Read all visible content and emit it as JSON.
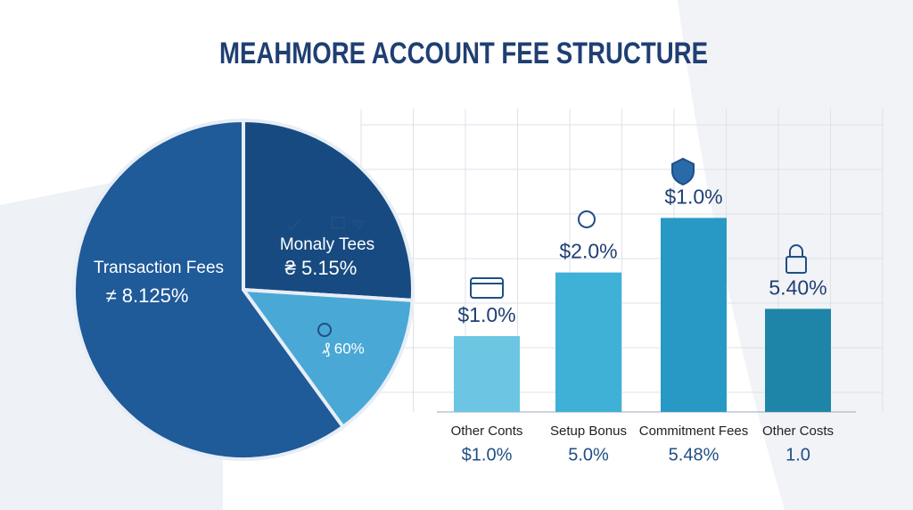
{
  "chart_data": [
    {
      "type": "pie",
      "title": "MEAHMORE ACCOUNT FEE STRUCTURE",
      "categories": [
        "Monaly Tees",
        null,
        "Transaction Fees"
      ],
      "values": [
        26,
        14,
        60
      ],
      "annotations": [
        "₴ 5.15%",
        "₰ 60%",
        "≠ 8.125%"
      ],
      "colors": [
        "#174a80",
        "#4aa8d6",
        "#1f5a99"
      ]
    },
    {
      "type": "bar",
      "categories": [
        "Other Conts",
        "Setup Bonus",
        "Commitment Fees",
        "Other Costs"
      ],
      "values": [
        2.5,
        4.6,
        6.4,
        3.4
      ],
      "ylim": [
        0,
        10
      ],
      "top_labels": [
        "$1.0%",
        "$2.0%",
        "$1.0%",
        "5.40%"
      ],
      "bottom_labels": [
        "$1.0%",
        "5.0%",
        "5.48%",
        "1.0"
      ],
      "colors": [
        "#6cc6e3",
        "#3fb0d6",
        "#2899c4",
        "#1f85a8"
      ],
      "grid": true
    }
  ]
}
